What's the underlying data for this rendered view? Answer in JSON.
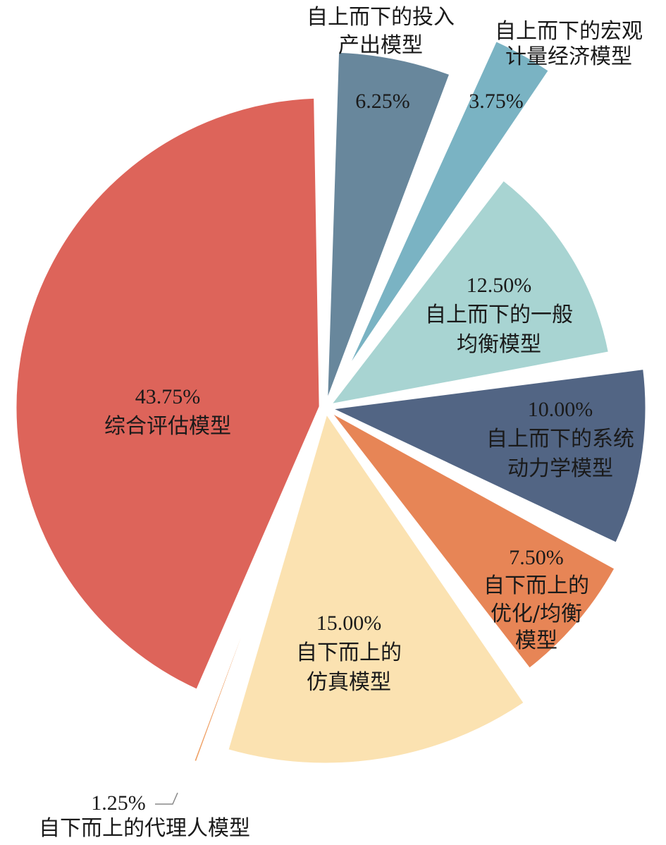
{
  "chart_data": {
    "type": "pie",
    "slices": [
      {
        "value": 6.25,
        "pct_label": "6.25%",
        "label_lines": [
          "自上而下的投入",
          "产出模型"
        ],
        "color": "#68879c"
      },
      {
        "value": 3.75,
        "pct_label": "3.75%",
        "label_lines": [
          "自上而下的宏观",
          "计量经济模型"
        ],
        "color": "#7ab3c3"
      },
      {
        "value": 12.5,
        "pct_label": "12.50%",
        "label_lines": [
          "自上而下的一般",
          "均衡模型"
        ],
        "color": "#a8d4d2"
      },
      {
        "value": 10.0,
        "pct_label": "10.00%",
        "label_lines": [
          "自上而下的系统",
          "动力学模型"
        ],
        "color": "#526584"
      },
      {
        "value": 7.5,
        "pct_label": "7.50%",
        "label_lines": [
          "自下而上的",
          "优化/均衡",
          "模型"
        ],
        "color": "#e78556"
      },
      {
        "value": 15.0,
        "pct_label": "15.00%",
        "label_lines": [
          "自下而上的",
          "仿真模型"
        ],
        "color": "#fbe2b1"
      },
      {
        "value": 1.25,
        "pct_label": "1.25%",
        "label_lines": [
          "自下而上的代理人模型"
        ],
        "color": "#efa065"
      },
      {
        "value": 43.75,
        "pct_label": "43.75%",
        "label_lines": [
          "综合评估模型"
        ],
        "color": "#dd645a"
      }
    ]
  }
}
